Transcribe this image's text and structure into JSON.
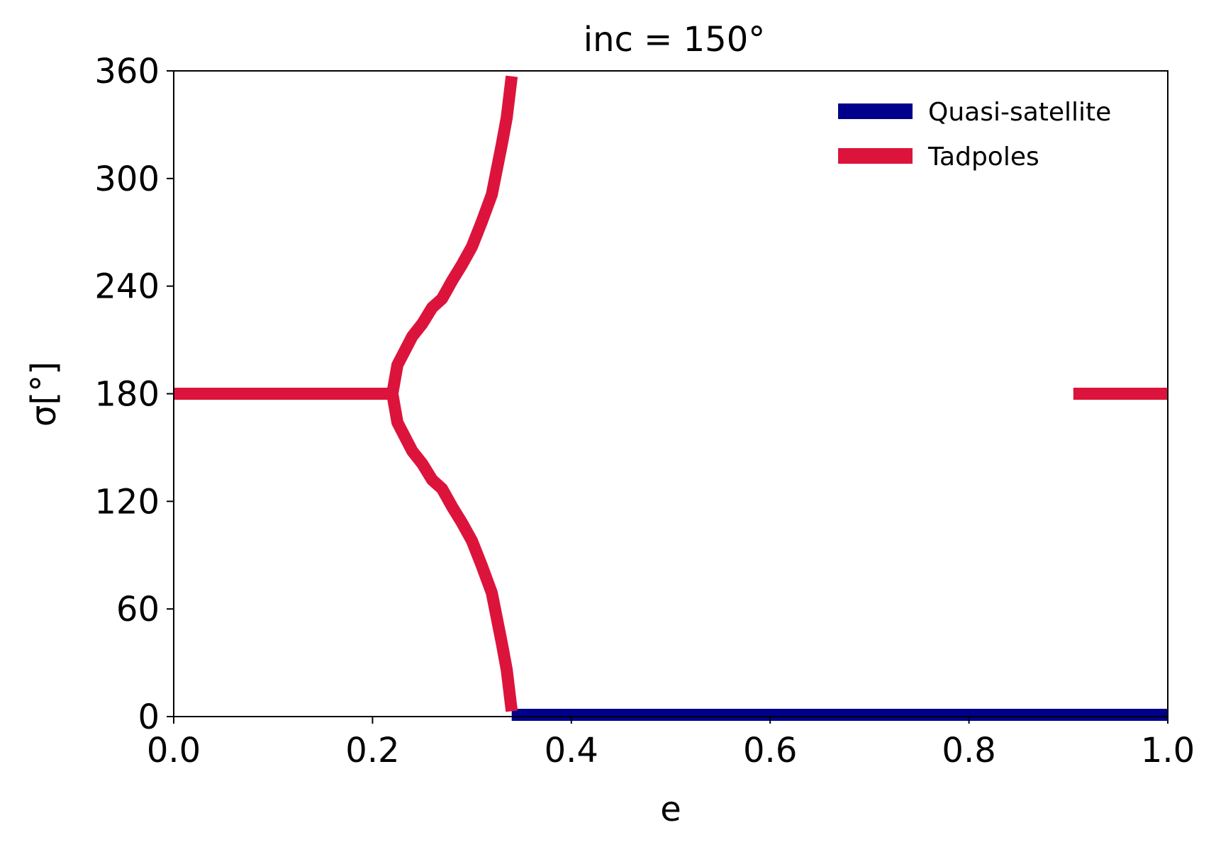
{
  "chart_data": {
    "type": "line",
    "title": "inc = 150°",
    "xlabel": "e",
    "ylabel": "σ[°]",
    "xlim": [
      0.0,
      1.0
    ],
    "ylim": [
      0,
      360
    ],
    "xticks": [
      "0.0",
      "0.2",
      "0.4",
      "0.6",
      "0.8",
      "1.0"
    ],
    "yticks": [
      "0",
      "60",
      "120",
      "180",
      "240",
      "300",
      "360"
    ],
    "grid": false,
    "legend_position": "top-right",
    "series": [
      {
        "name": "Quasi-satellite",
        "color": "#00008b",
        "segments": [
          [
            [
              0.34,
              1
            ],
            [
              1.0,
              1
            ]
          ]
        ]
      },
      {
        "name": "Tadpoles",
        "color": "#dc143c",
        "segments": [
          [
            [
              0.0,
              180
            ],
            [
              0.22,
              180
            ]
          ],
          [
            [
              0.22,
              180
            ],
            [
              0.225,
              196
            ],
            [
              0.24,
              212
            ],
            [
              0.25,
              219
            ],
            [
              0.26,
              228
            ],
            [
              0.27,
              233
            ],
            [
              0.28,
              243
            ],
            [
              0.29,
              252
            ],
            [
              0.3,
              262
            ],
            [
              0.31,
              276
            ],
            [
              0.32,
              291
            ],
            [
              0.33,
              319
            ],
            [
              0.335,
              334
            ],
            [
              0.34,
              357
            ]
          ],
          [
            [
              0.22,
              180
            ],
            [
              0.225,
              164
            ],
            [
              0.24,
              148
            ],
            [
              0.25,
              141
            ],
            [
              0.26,
              132
            ],
            [
              0.27,
              127
            ],
            [
              0.28,
              117
            ],
            [
              0.29,
              108
            ],
            [
              0.3,
              98
            ],
            [
              0.31,
              84
            ],
            [
              0.32,
              69
            ],
            [
              0.33,
              41
            ],
            [
              0.335,
              26
            ],
            [
              0.34,
              3
            ]
          ],
          [
            [
              0.905,
              180
            ],
            [
              1.0,
              180
            ]
          ]
        ]
      }
    ]
  }
}
